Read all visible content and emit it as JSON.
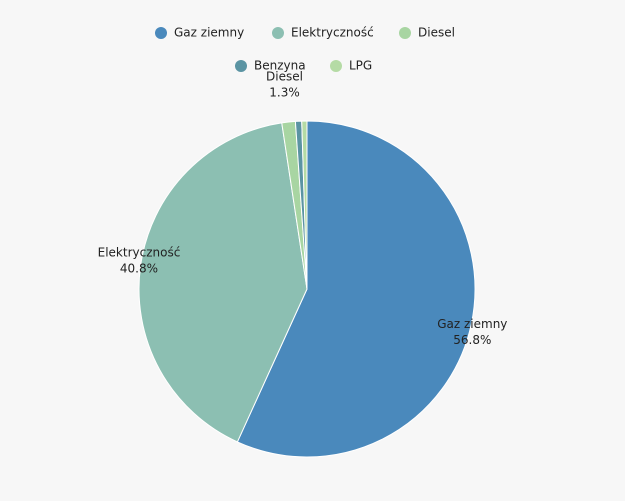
{
  "chart_data": {
    "type": "pie",
    "categories": [
      "Gaz ziemny",
      "Elektryczność",
      "Diesel",
      "Benzyna",
      "LPG"
    ],
    "values": [
      56.8,
      40.8,
      1.3,
      0.6,
      0.5
    ],
    "value_labels": [
      "56.8%",
      "40.8%",
      "1.3%",
      null,
      null
    ],
    "colors": [
      "#4a89bc",
      "#8cbfb2",
      "#a8d5a2",
      "#5b94a3",
      "#b5dba5"
    ],
    "legend": "top"
  }
}
